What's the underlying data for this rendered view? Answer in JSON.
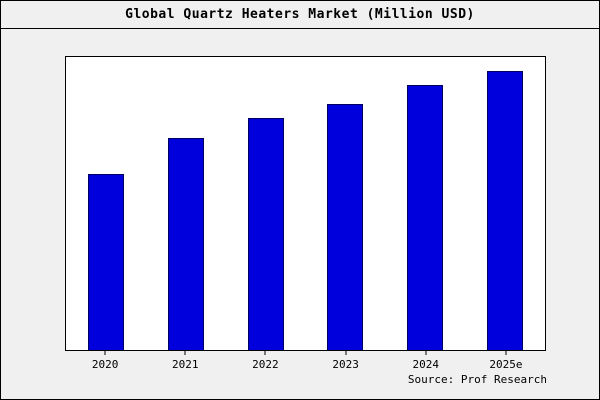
{
  "chart_data": {
    "type": "bar",
    "title": "Global Quartz Heaters Market (Million USD)",
    "categories": [
      "2020",
      "2021",
      "2022",
      "2023",
      "2024",
      "2025e"
    ],
    "values": [
      63,
      76,
      83,
      88,
      95,
      100
    ],
    "values_note": "No y-axis tick labels shown; values estimated relative to tallest bar (2025e = 100)",
    "ylim": [
      0,
      105
    ],
    "xlabel": "",
    "ylabel": "",
    "grid": false,
    "legend": false,
    "bar_color": "#0000dd",
    "bar_edge_color": "#000060",
    "source": "Source: Prof Research"
  },
  "colors": {
    "figure_background": "#f0f0f0",
    "plot_background": "#ffffff",
    "frame_border": "#000000",
    "text": "#000000"
  }
}
